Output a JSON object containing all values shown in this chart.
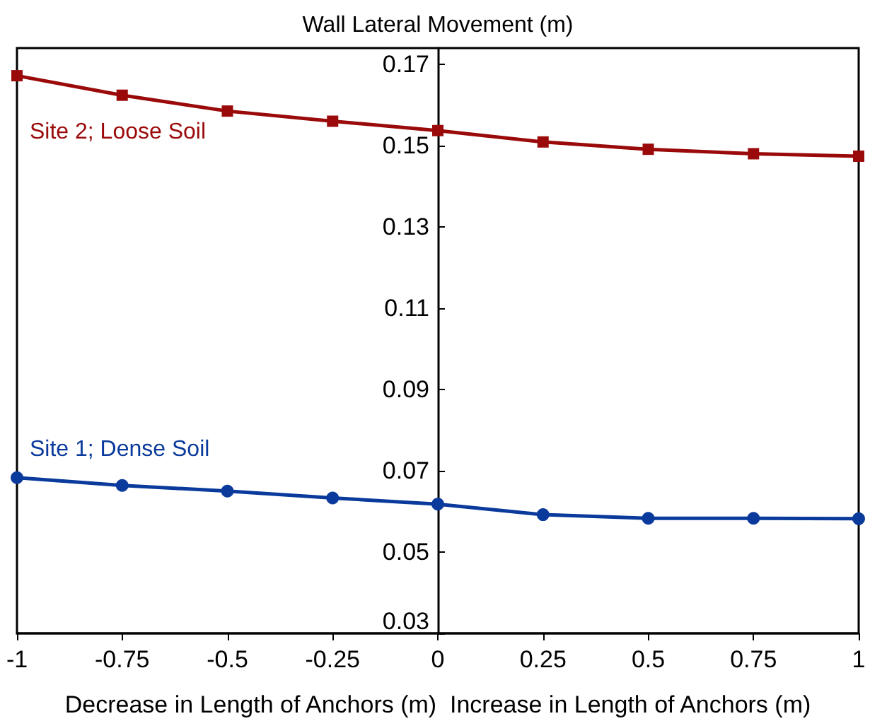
{
  "chart_data": {
    "type": "line",
    "ylabel": "Wall Lateral Movement (m)",
    "xlabel": "Decrease in Length of Anchors (m)  Increase in Length of Anchors (m)",
    "x": [
      -1,
      -0.75,
      -0.5,
      -0.25,
      0,
      0.25,
      0.5,
      0.75,
      1
    ],
    "series": [
      {
        "name": "Site 2; Loose Soil",
        "color": "#9b0a0a",
        "marker": "square",
        "values": [
          0.1672,
          0.1624,
          0.1585,
          0.156,
          0.1537,
          0.1509,
          0.1491,
          0.148,
          0.1474
        ]
      },
      {
        "name": "Site 1; Dense Soil",
        "color": "#0a3a9b",
        "marker": "circle",
        "values": [
          0.0683,
          0.0664,
          0.065,
          0.0633,
          0.0618,
          0.0592,
          0.0583,
          0.0583,
          0.0582
        ]
      }
    ],
    "xlim": [
      -1,
      1
    ],
    "xticks": [
      -1,
      -0.75,
      -0.5,
      -0.25,
      0,
      0.25,
      0.5,
      0.75,
      1
    ],
    "ylim": [
      0.03,
      0.174
    ],
    "yticks": [
      0.03,
      0.05,
      0.07,
      0.09,
      0.11,
      0.13,
      0.15,
      0.17
    ],
    "grid": false,
    "legend": false,
    "line_style": "solid"
  }
}
